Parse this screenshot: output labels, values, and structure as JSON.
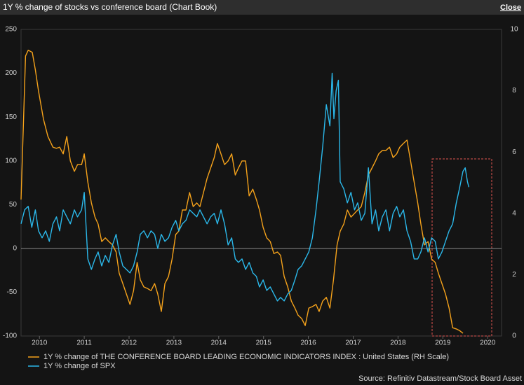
{
  "window": {
    "title": "1Y % change of stocks vs conference board (Chart Book)",
    "close": "Close"
  },
  "chart_data": {
    "type": "line",
    "source": "Source: Refinitiv Datastream/Stock Board Asset",
    "xlim": [
      2009.59,
      2020.31
    ],
    "xticks": [
      2010,
      2011,
      2012,
      2013,
      2014,
      2015,
      2016,
      2017,
      2018,
      2019,
      2020
    ],
    "ylim": [
      -100,
      250
    ],
    "yticks": [
      -100,
      -50,
      0,
      50,
      100,
      150,
      200,
      250
    ],
    "y2lim": [
      0,
      10
    ],
    "y2ticks": [
      0,
      2,
      4,
      6,
      8,
      10
    ],
    "series": [
      {
        "name": "1Y % change of THE CONFERENCE BOARD LEADING ECONOMIC INDICATORS INDEX : United States (RH Scale)",
        "color": "#f5a21b",
        "axis": "y2",
        "x": [
          2009.59,
          2009.69,
          2009.75,
          2009.84,
          2009.91,
          2009.98,
          2010.09,
          2010.19,
          2010.3,
          2010.38,
          2010.45,
          2010.53,
          2010.61,
          2010.69,
          2010.78,
          2010.85,
          2010.94,
          2011.0,
          2011.08,
          2011.16,
          2011.24,
          2011.31,
          2011.39,
          2011.47,
          2011.55,
          2011.63,
          2011.71,
          2011.78,
          2011.86,
          2011.94,
          2012.02,
          2012.1,
          2012.18,
          2012.25,
          2012.33,
          2012.41,
          2012.49,
          2012.57,
          2012.64,
          2012.72,
          2012.8,
          2012.88,
          2012.96,
          2013.04,
          2013.11,
          2013.19,
          2013.27,
          2013.35,
          2013.43,
          2013.51,
          2013.58,
          2013.66,
          2013.74,
          2013.82,
          2013.9,
          2013.97,
          2014.05,
          2014.13,
          2014.21,
          2014.29,
          2014.37,
          2014.44,
          2014.52,
          2014.6,
          2014.68,
          2014.76,
          2014.84,
          2014.91,
          2014.99,
          2015.07,
          2015.15,
          2015.23,
          2015.31,
          2015.38,
          2015.46,
          2015.54,
          2015.62,
          2015.7,
          2015.77,
          2015.85,
          2015.93,
          2016.01,
          2016.09,
          2016.17,
          2016.24,
          2016.32,
          2016.4,
          2016.48,
          2016.56,
          2016.64,
          2016.71,
          2016.79,
          2016.87,
          2016.95,
          2017.03,
          2017.1,
          2017.18,
          2017.26,
          2017.34,
          2017.42,
          2017.5,
          2017.57,
          2017.65,
          2017.73,
          2017.81,
          2017.89,
          2017.97,
          2018.04,
          2018.12,
          2018.2,
          2018.28,
          2018.36,
          2018.44,
          2018.51,
          2018.59,
          2018.67,
          2018.75,
          2018.83,
          2018.9,
          2018.98,
          2019.06,
          2019.14,
          2019.22,
          2019.3,
          2019.37,
          2019.45
        ],
        "values": [
          4.45,
          9.13,
          9.32,
          9.25,
          8.68,
          7.99,
          7.08,
          6.51,
          6.16,
          6.12,
          6.16,
          5.94,
          6.51,
          5.71,
          5.37,
          5.59,
          5.59,
          5.94,
          5.02,
          4.34,
          3.88,
          3.65,
          3.08,
          3.2,
          3.08,
          2.97,
          2.74,
          2.05,
          1.71,
          1.37,
          1.03,
          1.48,
          2.4,
          1.83,
          1.6,
          1.55,
          1.48,
          1.71,
          1.37,
          0.8,
          1.71,
          1.94,
          2.51,
          3.31,
          3.42,
          4.11,
          4.11,
          4.68,
          4.22,
          4.34,
          4.22,
          4.68,
          5.14,
          5.48,
          5.82,
          6.28,
          5.94,
          5.59,
          5.71,
          5.94,
          5.25,
          5.48,
          5.71,
          5.71,
          4.57,
          4.79,
          4.45,
          4.11,
          3.54,
          3.2,
          3.08,
          2.69,
          2.74,
          2.63,
          1.94,
          1.6,
          1.14,
          0.91,
          0.68,
          0.57,
          0.34,
          0.91,
          0.96,
          1.03,
          0.8,
          1.14,
          1.26,
          0.91,
          1.83,
          2.97,
          3.42,
          3.65,
          4.11,
          3.88,
          4.0,
          4.11,
          4.22,
          4.68,
          5.25,
          5.48,
          5.71,
          5.94,
          6.05,
          6.05,
          6.16,
          5.82,
          5.94,
          6.16,
          6.28,
          6.39,
          5.71,
          5.02,
          4.34,
          3.65,
          2.97,
          3.08,
          2.51,
          2.4,
          2.05,
          1.71,
          1.37,
          0.91,
          0.27,
          0.23,
          0.18,
          0.09
        ]
      },
      {
        "name": "1Y % change of SPX",
        "color": "#2bb8ea",
        "axis": "y",
        "x": [
          2009.59,
          2009.67,
          2009.75,
          2009.83,
          2009.91,
          2009.98,
          2010.06,
          2010.14,
          2010.22,
          2010.3,
          2010.38,
          2010.45,
          2010.53,
          2010.61,
          2010.69,
          2010.78,
          2010.85,
          2010.94,
          2011.0,
          2011.08,
          2011.16,
          2011.24,
          2011.31,
          2011.39,
          2011.47,
          2011.55,
          2011.63,
          2011.71,
          2011.78,
          2011.86,
          2011.94,
          2012.02,
          2012.1,
          2012.18,
          2012.25,
          2012.33,
          2012.41,
          2012.49,
          2012.57,
          2012.64,
          2012.72,
          2012.8,
          2012.88,
          2012.96,
          2013.04,
          2013.11,
          2013.19,
          2013.27,
          2013.35,
          2013.43,
          2013.51,
          2013.58,
          2013.66,
          2013.74,
          2013.82,
          2013.9,
          2013.97,
          2014.05,
          2014.13,
          2014.21,
          2014.29,
          2014.37,
          2014.44,
          2014.52,
          2014.6,
          2014.68,
          2014.76,
          2014.84,
          2014.91,
          2014.99,
          2015.07,
          2015.15,
          2015.23,
          2015.31,
          2015.38,
          2015.46,
          2015.54,
          2015.62,
          2015.7,
          2015.77,
          2015.85,
          2015.93,
          2016.01,
          2016.09,
          2016.17,
          2016.24,
          2016.32,
          2016.4,
          2016.48,
          2016.53,
          2016.57,
          2016.62,
          2016.67,
          2016.71,
          2016.79,
          2016.87,
          2016.95,
          2017.03,
          2017.1,
          2017.18,
          2017.26,
          2017.34,
          2017.42,
          2017.5,
          2017.57,
          2017.65,
          2017.73,
          2017.81,
          2017.89,
          2017.97,
          2018.04,
          2018.12,
          2018.2,
          2018.28,
          2018.36,
          2018.44,
          2018.51,
          2018.59,
          2018.67,
          2018.75,
          2018.83,
          2018.9,
          2018.98,
          2019.06,
          2019.14,
          2019.22,
          2019.3,
          2019.37,
          2019.45,
          2019.5,
          2019.55,
          2019.58
        ],
        "values": [
          28,
          44,
          48,
          24,
          44,
          20,
          12,
          20,
          8,
          28,
          36,
          20,
          44,
          36,
          28,
          44,
          36,
          44,
          64,
          -12,
          -24,
          -12,
          -4,
          -20,
          -8,
          -16,
          4,
          16,
          -4,
          -20,
          -24,
          -28,
          -20,
          -4,
          16,
          20,
          12,
          20,
          16,
          0,
          16,
          8,
          12,
          24,
          32,
          20,
          28,
          32,
          44,
          40,
          36,
          44,
          36,
          28,
          36,
          40,
          28,
          44,
          28,
          4,
          12,
          -12,
          -16,
          -12,
          -24,
          -16,
          -28,
          -32,
          -44,
          -36,
          -48,
          -44,
          -52,
          -60,
          -56,
          -60,
          -52,
          -48,
          -36,
          -24,
          -20,
          -12,
          -4,
          12,
          44,
          76,
          116,
          164,
          140,
          200,
          148,
          180,
          192,
          76,
          68,
          52,
          64,
          44,
          52,
          32,
          40,
          92,
          28,
          44,
          20,
          36,
          44,
          20,
          40,
          48,
          36,
          44,
          20,
          8,
          -12,
          -12,
          -4,
          12,
          -4,
          12,
          8,
          -12,
          -4,
          8,
          20,
          28,
          52,
          68,
          88,
          92,
          76,
          70
        ]
      }
    ]
  }
}
